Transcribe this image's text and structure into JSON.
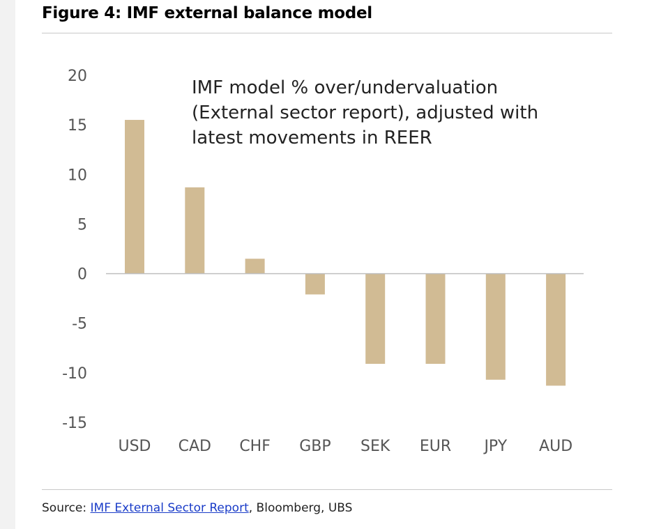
{
  "figure": {
    "title": "Figure 4: IMF external balance model"
  },
  "source": {
    "prefix": "Source: ",
    "link_text": "IMF External Sector Report",
    "suffix": ", Bloomberg, UBS"
  },
  "colors": {
    "bar": "#d1bb94",
    "axis": "#bfbfbf",
    "link": "#1a3cc8"
  },
  "chart_data": {
    "type": "bar",
    "title": "",
    "xlabel": "",
    "ylabel": "",
    "ylim": [
      -15,
      20
    ],
    "yticks": [
      20,
      15,
      10,
      5,
      0,
      -5,
      -10,
      -15
    ],
    "categories": [
      "USD",
      "CAD",
      "CHF",
      "GBP",
      "SEK",
      "EUR",
      "JPY",
      "AUD"
    ],
    "values": [
      15.5,
      8.7,
      1.5,
      -2.1,
      -9.1,
      -9.1,
      -10.7,
      -11.3
    ],
    "annotation": [
      "IMF model % over/undervaluation",
      "(External sector report), adjusted with",
      "latest movements in REER"
    ],
    "grid": false,
    "legend": "none"
  }
}
